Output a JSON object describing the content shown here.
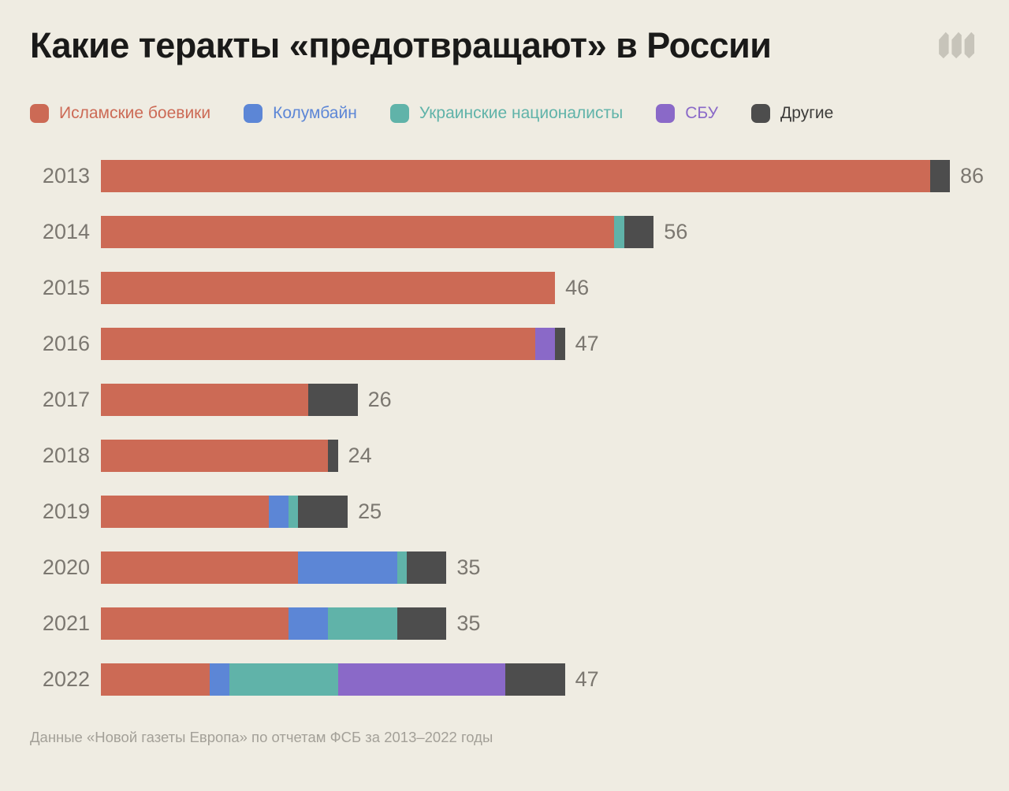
{
  "title": "Какие теракты «предотвращают» в России",
  "logo": {
    "name": "meduza-logo",
    "color": "#C7C4BA"
  },
  "colors": {
    "background": "#EFECE2",
    "title": "#1A1A19",
    "axis_label": "#7B7770",
    "footer": "#A3A098",
    "islamic": "#CC6A55",
    "columbine": "#5C86D6",
    "ukrainian": "#60B3A9",
    "sbu": "#8A69C8",
    "others": "#4D4D4D",
    "others_label": "#3D3C3A"
  },
  "legend": [
    {
      "key": "islamic",
      "label": "Исламские боевики"
    },
    {
      "key": "columbine",
      "label": "Колумбайн"
    },
    {
      "key": "ukrainian",
      "label": "Украинские националисты"
    },
    {
      "key": "sbu",
      "label": "СБУ"
    },
    {
      "key": "others",
      "label": "Другие",
      "label_color_key": "others_label"
    }
  ],
  "chart_data": {
    "type": "bar",
    "orientation": "horizontal",
    "stacked": true,
    "grid": false,
    "legend_position": "top",
    "value_labels": true,
    "xmax": 86,
    "categories": [
      "2013",
      "2014",
      "2015",
      "2016",
      "2017",
      "2018",
      "2019",
      "2020",
      "2021",
      "2022"
    ],
    "series": [
      {
        "name": "Исламские боевики",
        "key": "islamic",
        "values": [
          84,
          52,
          46,
          44,
          21,
          23,
          17,
          20,
          19,
          11
        ]
      },
      {
        "name": "Колумбайн",
        "key": "columbine",
        "values": [
          0,
          0,
          0,
          0,
          0,
          0,
          2,
          10,
          4,
          2
        ]
      },
      {
        "name": "Украинские националисты",
        "key": "ukrainian",
        "values": [
          0,
          1,
          0,
          0,
          0,
          0,
          1,
          1,
          7,
          11
        ]
      },
      {
        "name": "СБУ",
        "key": "sbu",
        "values": [
          0,
          0,
          0,
          2,
          0,
          0,
          0,
          0,
          0,
          17
        ]
      },
      {
        "name": "Другие",
        "key": "others",
        "values": [
          2,
          3,
          0,
          1,
          5,
          1,
          5,
          4,
          5,
          6
        ]
      }
    ],
    "totals": [
      86,
      56,
      46,
      47,
      26,
      24,
      25,
      35,
      35,
      47
    ]
  },
  "footer": "Данные «Новой газеты Европа» по отчетам ФСБ за 2013–2022 годы"
}
